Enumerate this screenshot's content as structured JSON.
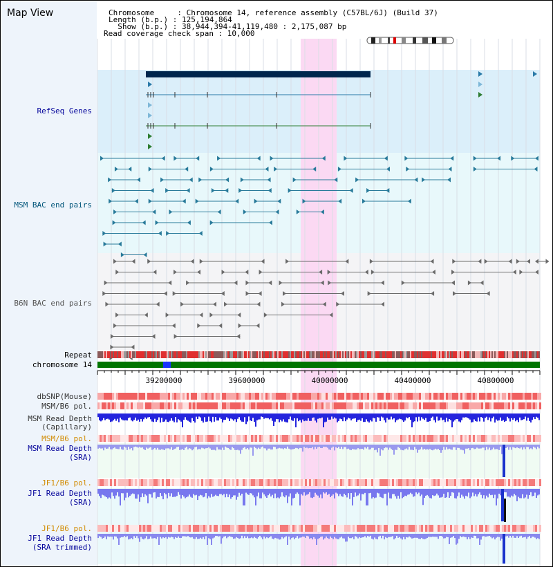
{
  "page_title": "Map View",
  "info": {
    "line1": "Chromosome     : Chromosome 14, reference assembly (C57BL/6J) (Build 37)",
    "line2": "Length (b.p.) : 125,194,864",
    "line3": "  Show (b.p.) : 38,944,394-41,119,480 : 2,175,087 bp",
    "line4": "Read coverage check span : 10,000"
  },
  "tracks": {
    "refseq": "RefSeq Genes",
    "msm_bac": "MSM BAC end pairs",
    "b6n_bac": "B6N BAC end pairs",
    "repeat": "Repeat",
    "chromosome": "chromosome 14",
    "dbsnp": "dbSNP(Mouse)",
    "msm_b6_pol_1": "MSM/B6 pol.",
    "msm_depth_cap_1": "MSM Read Depth",
    "msm_depth_cap_2": "(Capillary)",
    "msm_b6_pol_2": "MSM/B6 pol.",
    "msm_depth_sra_1": "MSM Read Depth",
    "msm_depth_sra_2": "(SRA)",
    "jf1_b6_pol_1": "JF1/B6 pol.",
    "jf1_depth_sra_1": "JF1 Read Depth",
    "jf1_depth_sra_2": "(SRA)",
    "jf1_b6_pol_2": "JF1/B6 pol.",
    "jf1_depth_trim_1": "JF1 Read Depth",
    "jf1_depth_trim_2": "(SRA trimmed)"
  },
  "axis": {
    "ticks": [
      "39200000",
      "39600000",
      "40000000",
      "40400000",
      "40800000"
    ]
  },
  "colors": {
    "refseq_label": "#000099",
    "msm_bac_label": "#00557a",
    "b6n_bac_label": "#555555",
    "pol_label": "#d18a00",
    "depth_label": "#000099",
    "highlight": "#fbd9f3",
    "gene_dark": "#00264d",
    "read_depth": "#2222dd"
  }
}
